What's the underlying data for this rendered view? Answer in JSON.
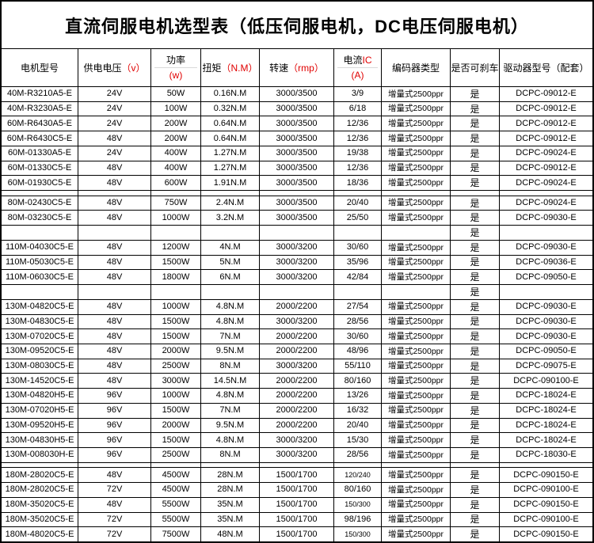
{
  "title": "直流伺服电机选型表（低压伺服电机，DC电压伺服电机）",
  "colors": {
    "unit_accent": "#e00000",
    "grid_line": "#000000",
    "background": "#ffffff"
  },
  "header": {
    "columns": [
      {
        "label": "电机型号"
      },
      {
        "label": "供电电压",
        "unit": "（v）"
      },
      {
        "label": "功率",
        "unit": "(w)"
      },
      {
        "label": "扭矩",
        "unit": "（N.M）"
      },
      {
        "label": "转速",
        "unit": "（rmp）"
      },
      {
        "label": "电流",
        "unit": "IC",
        "unit2": "(A)"
      },
      {
        "label": "编码器类型"
      },
      {
        "label": "是否可刹车"
      },
      {
        "label": "驱动器型号（配套）"
      }
    ]
  },
  "rows": [
    [
      "40M-R3210A5-E",
      "24V",
      "50W",
      "0.16N.M",
      "3000/3500",
      "3/9",
      "增量式2500ppr",
      "是",
      "DCPC-09012-E"
    ],
    [
      "40M-R3230A5-E",
      "24V",
      "100W",
      "0.32N.M",
      "3000/3500",
      "6/18",
      "增量式2500ppr",
      "是",
      "DCPC-09012-E"
    ],
    [
      "60M-R6430A5-E",
      "24V",
      "200W",
      "0.64N.M",
      "3000/3500",
      "12/36",
      "增量式2500ppr",
      "是",
      "DCPC-09012-E"
    ],
    [
      "60M-R6430C5-E",
      "48V",
      "200W",
      "0.64N.M",
      "3000/3500",
      "12/36",
      "增量式2500ppr",
      "是",
      "DCPC-09012-E"
    ],
    [
      "60M-01330A5-E",
      "24V",
      "400W",
      "1.27N.M",
      "3000/3500",
      "19/38",
      "增量式2500ppr",
      "是",
      "DCPC-09024-E"
    ],
    [
      "60M-01330C5-E",
      "48V",
      "400W",
      "1.27N.M",
      "3000/3500",
      "12/36",
      "增量式2500ppr",
      "是",
      "DCPC-09012-E"
    ],
    [
      "60M-01930C5-E",
      "48V",
      "600W",
      "1.91N.M",
      "3000/3500",
      "18/36",
      "增量式2500ppr",
      "是",
      "DCPC-09024-E"
    ],
    [
      "",
      "",
      "",
      "",
      "",
      "",
      "",
      "",
      ""
    ],
    [
      "80M-02430C5-E",
      "48V",
      "750W",
      "2.4N.M",
      "3000/3500",
      "20/40",
      "增量式2500ppr",
      "是",
      "DCPC-09024-E"
    ],
    [
      "80M-03230C5-E",
      "48V",
      "1000W",
      "3.2N.M",
      "3000/3500",
      "25/50",
      "增量式2500ppr",
      "是",
      "DCPC-09030-E"
    ],
    [
      "",
      "",
      "",
      "",
      "",
      "",
      "",
      "是",
      ""
    ],
    [
      "110M-04030C5-E",
      "48V",
      "1200W",
      "4N.M",
      "3000/3200",
      "30/60",
      "增量式2500ppr",
      "是",
      "DCPC-09030-E"
    ],
    [
      "110M-05030C5-E",
      "48V",
      "1500W",
      "5N.M",
      "3000/3200",
      "35/96",
      "增量式2500ppr",
      "是",
      "DCPC-09036-E"
    ],
    [
      "110M-06030C5-E",
      "48V",
      "1800W",
      "6N.M",
      "3000/3200",
      "42/84",
      "增量式2500ppr",
      "是",
      "DCPC-09050-E"
    ],
    [
      "",
      "",
      "",
      "",
      "",
      "",
      "",
      "是",
      ""
    ],
    [
      "130M-04820C5-E",
      "48V",
      "1000W",
      "4.8N.M",
      "2000/2200",
      "27/54",
      "增量式2500ppr",
      "是",
      "DCPC-09030-E"
    ],
    [
      "130M-04830C5-E",
      "48V",
      "1500W",
      "4.8N.M",
      "3000/3200",
      "28/56",
      "增量式2500ppr",
      "是",
      "DCPC-09030-E"
    ],
    [
      "130M-07020C5-E",
      "48V",
      "1500W",
      "7N.M",
      "2000/2200",
      "30/60",
      "增量式2500ppr",
      "是",
      "DCPC-09030-E"
    ],
    [
      "130M-09520C5-E",
      "48V",
      "2000W",
      "9.5N.M",
      "2000/2200",
      "48/96",
      "增量式2500ppr",
      "是",
      "DCPC-09050-E"
    ],
    [
      "130M-08030C5-E",
      "48V",
      "2500W",
      "8N.M",
      "3000/3200",
      "55/110",
      "增量式2500ppr",
      "是",
      "DCPC-09075-E"
    ],
    [
      "130M-14520C5-E",
      "48V",
      "3000W",
      "14.5N.M",
      "2000/2200",
      "80/160",
      "增量式2500ppr",
      "是",
      "DCPC-090100-E"
    ],
    [
      "130M-04820H5-E",
      "96V",
      "1000W",
      "4.8N.M",
      "2000/2200",
      "13/26",
      "增量式2500ppr",
      "是",
      "DCPC-18024-E"
    ],
    [
      "130M-07020H5-E",
      "96V",
      "1500W",
      "7N.M",
      "2000/2200",
      "16/32",
      "增量式2500ppr",
      "是",
      "DCPC-18024-E"
    ],
    [
      "130M-09520H5-E",
      "96V",
      "2000W",
      "9.5N.M",
      "2000/2200",
      "20/40",
      "增量式2500ppr",
      "是",
      "DCPC-18024-E"
    ],
    [
      "130M-04830H5-E",
      "96V",
      "1500W",
      "4.8N.M",
      "3000/3200",
      "15/30",
      "增量式2500ppr",
      "是",
      "DCPC-18024-E"
    ],
    [
      "130M-008030H-E",
      "96V",
      "2500W",
      "8N.M",
      "3000/3200",
      "28/56",
      "增量式2500ppr",
      "是",
      "DCPC-18030-E"
    ],
    [
      "",
      "",
      "",
      "",
      "",
      "",
      "",
      "",
      ""
    ],
    [
      "180M-28020C5-E",
      "48V",
      "4500W",
      "28N.M",
      "1500/1700",
      "120/240",
      "增量式2500ppr",
      "是",
      "DCPC-090150-E"
    ],
    [
      "180M-28020C5-E",
      "72V",
      "4500W",
      "28N.M",
      "1500/1700",
      "80/160",
      "增量式2500ppr",
      "是",
      "DCPC-090100-E"
    ],
    [
      "180M-35020C5-E",
      "48V",
      "5500W",
      "35N.M",
      "1500/1700",
      "150/300",
      "增量式2500ppr",
      "是",
      "DCPC-090150-E"
    ],
    [
      "180M-35020C5-E",
      "72V",
      "5500W",
      "35N.M",
      "1500/1700",
      "98/196",
      "增量式2500ppr",
      "是",
      "DCPC-090100-E"
    ],
    [
      "180M-48020C5-E",
      "72V",
      "7500W",
      "48N.M",
      "1500/1700",
      "150/300",
      "增量式2500ppr",
      "是",
      "DCPC-090150-E"
    ]
  ]
}
